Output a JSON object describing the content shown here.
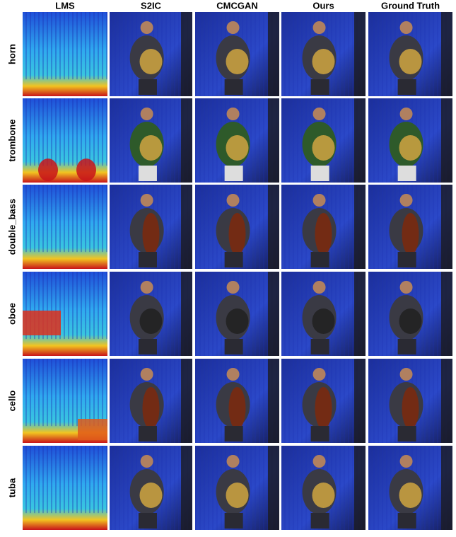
{
  "columns": [
    "LMS",
    "S2IC",
    "CMCGAN",
    "Ours",
    "Ground Truth"
  ],
  "rows": [
    "horn",
    "trombone",
    "double_bass",
    "oboe",
    "cello",
    "tuba"
  ]
}
